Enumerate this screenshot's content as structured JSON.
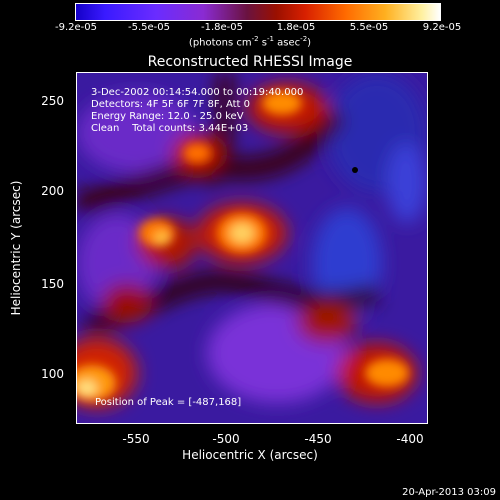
{
  "colorbar": {
    "ticks": [
      "-9.2e-05",
      "-5.5e-05",
      "-1.8e-05",
      "1.8e-05",
      "5.5e-05",
      "9.2e-05"
    ],
    "units_prefix": "(photons cm",
    "units_suffix": " s",
    "units_tail": " asec",
    "sup_m2": "-2",
    "sup_m1": "-1",
    "sup_m2b": "-2"
  },
  "title": "Reconstructed RHESSI Image",
  "info": {
    "time_range": "3-Dec-2002 00:14:54.000 to 00:19:40.000",
    "detectors": "Detectors: 4F 5F 6F 7F 8F, Att 0",
    "energy": "Energy Range: 12.0 - 25.0 keV",
    "clean": "Clean    Total counts: 3.44E+03",
    "peak": "Position of Peak = [-487,168]"
  },
  "axes": {
    "xlabel": "Heliocentric X (arcsec)",
    "ylabel": "Heliocentric Y (arcsec)",
    "xticks": [
      "-550",
      "-500",
      "-450",
      "-400"
    ],
    "yticks": [
      "250",
      "200",
      "150",
      "100"
    ]
  },
  "timestamp": "20-Apr-2013 03:09",
  "colors": {
    "low": "#1400c8",
    "mid": "#6a1240",
    "high": "#ffffff"
  }
}
